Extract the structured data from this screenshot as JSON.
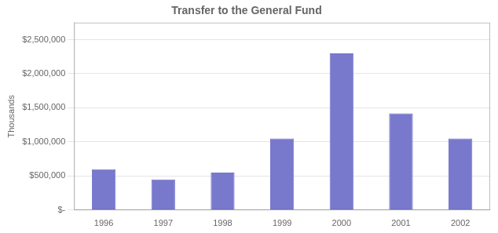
{
  "chart_data": {
    "type": "bar",
    "title": "Transfer to the General Fund",
    "ylabel": "Thousands",
    "categories": [
      "1996",
      "1997",
      "1998",
      "1999",
      "2000",
      "2001",
      "2002"
    ],
    "values": [
      600000,
      450000,
      550000,
      1050000,
      2300000,
      1420000,
      1050000
    ],
    "color": "#7878cc",
    "ylim": [
      0,
      2750000
    ],
    "yticks": [
      {
        "value": 0,
        "label": "$-"
      },
      {
        "value": 500000,
        "label": "$500,000"
      },
      {
        "value": 1000000,
        "label": "$1,000,000"
      },
      {
        "value": 1500000,
        "label": "$1,500,000"
      },
      {
        "value": 2000000,
        "label": "$2,000,000"
      },
      {
        "value": 2500000,
        "label": "$2,500,000"
      }
    ],
    "grid": true
  }
}
